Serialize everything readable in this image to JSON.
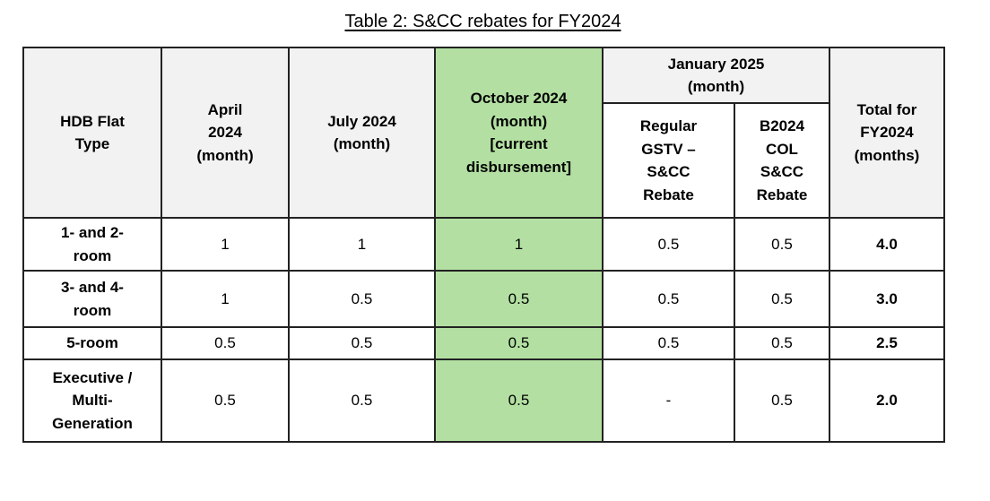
{
  "page": {
    "title": "Table 2: S&CC rebates for FY2024"
  },
  "table": {
    "col_headers": {
      "flat_type": "HDB Flat\nType",
      "april": "April\n2024\n(month)",
      "july": "July 2024\n(month)",
      "october": "October 2024\n(month)\n[current\ndisbursement]",
      "january_group": "January 2025\n(month)",
      "january_sub": [
        "Regular\nGSTV –\nS&CC\nRebate",
        "B2024\nCOL\nS&CC\nRebate"
      ],
      "total": "Total for\nFY2024\n(months)"
    },
    "rows": [
      {
        "flat_type": "1- and 2-\nroom",
        "april": "1",
        "july": "1",
        "october": "1",
        "jan_regular": "0.5",
        "jan_b2024": "0.5",
        "total": "4.0"
      },
      {
        "flat_type": "3- and 4-\nroom",
        "april": "1",
        "july": "0.5",
        "october": "0.5",
        "jan_regular": "0.5",
        "jan_b2024": "0.5",
        "total": "3.0"
      },
      {
        "flat_type": "5-room",
        "april": "0.5",
        "july": "0.5",
        "october": "0.5",
        "jan_regular": "0.5",
        "jan_b2024": "0.5",
        "total": "2.5"
      },
      {
        "flat_type": "Executive /\nMulti-\nGeneration",
        "april": "0.5",
        "july": "0.5",
        "october": "0.5",
        "jan_regular": "-",
        "jan_b2024": "0.5",
        "total": "2.0"
      }
    ],
    "colors": {
      "highlight_green": "#b3e0a2",
      "header_gray": "#f2f2f2",
      "border": "#222222"
    }
  }
}
